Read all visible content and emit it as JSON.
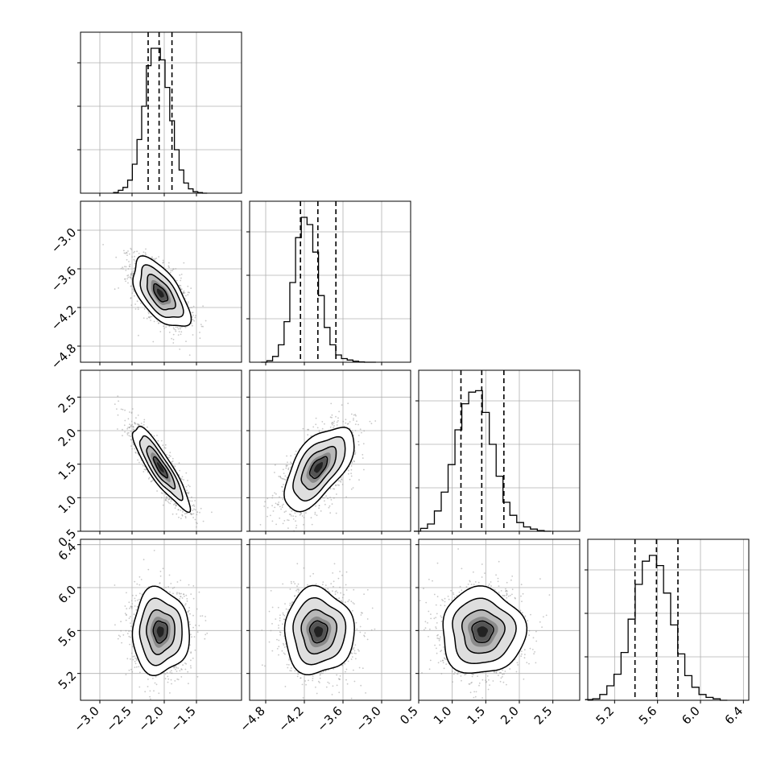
{
  "chart_data": {
    "type": "corner",
    "params": [
      {
        "range": [
          -3.3,
          -0.8
        ],
        "ticks": [
          -3.0,
          -2.5,
          -2.0,
          -1.5
        ],
        "tick_labels": [
          "−3.0",
          "−2.5",
          "−2.0",
          "−1.5"
        ],
        "quantiles": [
          -2.25,
          -2.08,
          -1.88
        ],
        "mean": -2.06,
        "sd": 0.22
      },
      {
        "range": [
          -5.05,
          -2.55
        ],
        "ticks": [
          -4.8,
          -4.2,
          -3.6,
          -3.0
        ],
        "tick_labels": [
          "−4.8",
          "−4.2",
          "−3.6",
          "−3.0"
        ],
        "quantiles": [
          -4.26,
          -3.99,
          -3.71
        ],
        "mean": -3.98,
        "sd": 0.27
      },
      {
        "range": [
          0.5,
          2.9
        ],
        "ticks": [
          0.5,
          1.0,
          1.5,
          2.0,
          2.5
        ],
        "tick_labels": [
          "0.5",
          "1.0",
          "1.5",
          "2.0",
          "2.5"
        ],
        "quantiles": [
          1.13,
          1.44,
          1.77
        ],
        "mean": 1.45,
        "sd": 0.31
      },
      {
        "range": [
          4.95,
          6.45
        ],
        "ticks": [
          5.2,
          5.6,
          6.0,
          6.4
        ],
        "tick_labels": [
          "5.2",
          "5.6",
          "6.0",
          "6.4"
        ],
        "quantiles": [
          5.39,
          5.59,
          5.79
        ],
        "mean": 5.59,
        "sd": 0.2
      }
    ],
    "correlations": [
      [
        1.0,
        -0.6,
        -0.88,
        0.0
      ],
      [
        -0.6,
        1.0,
        0.6,
        0.0
      ],
      [
        -0.88,
        0.6,
        1.0,
        0.0
      ],
      [
        0.0,
        0.0,
        0.0,
        1.0
      ]
    ],
    "histograms": [
      [
        0.005,
        0.02,
        0.04,
        0.09,
        0.2,
        0.37,
        0.6,
        0.88,
        1.0,
        1.0,
        0.92,
        0.73,
        0.5,
        0.3,
        0.16,
        0.07,
        0.03,
        0.01,
        0.004,
        0.0
      ],
      [
        0.0,
        0.01,
        0.04,
        0.12,
        0.28,
        0.55,
        0.86,
        1.0,
        0.95,
        0.76,
        0.46,
        0.24,
        0.12,
        0.05,
        0.025,
        0.015,
        0.007,
        0.002,
        0.0,
        0.0
      ],
      [
        0.0,
        0.02,
        0.05,
        0.14,
        0.27,
        0.46,
        0.7,
        0.88,
        0.96,
        0.97,
        0.82,
        0.6,
        0.38,
        0.2,
        0.11,
        0.06,
        0.03,
        0.015,
        0.005,
        0.0
      ],
      [
        0.005,
        0.01,
        0.04,
        0.1,
        0.18,
        0.33,
        0.56,
        0.8,
        0.96,
        1.0,
        0.93,
        0.74,
        0.52,
        0.32,
        0.17,
        0.09,
        0.04,
        0.02,
        0.01,
        0.0
      ]
    ],
    "contour_levels_sigma": [
      0.5,
      1.0,
      1.5,
      2.0
    ],
    "grid": true,
    "title": "",
    "xlabel": "",
    "ylabel": ""
  }
}
